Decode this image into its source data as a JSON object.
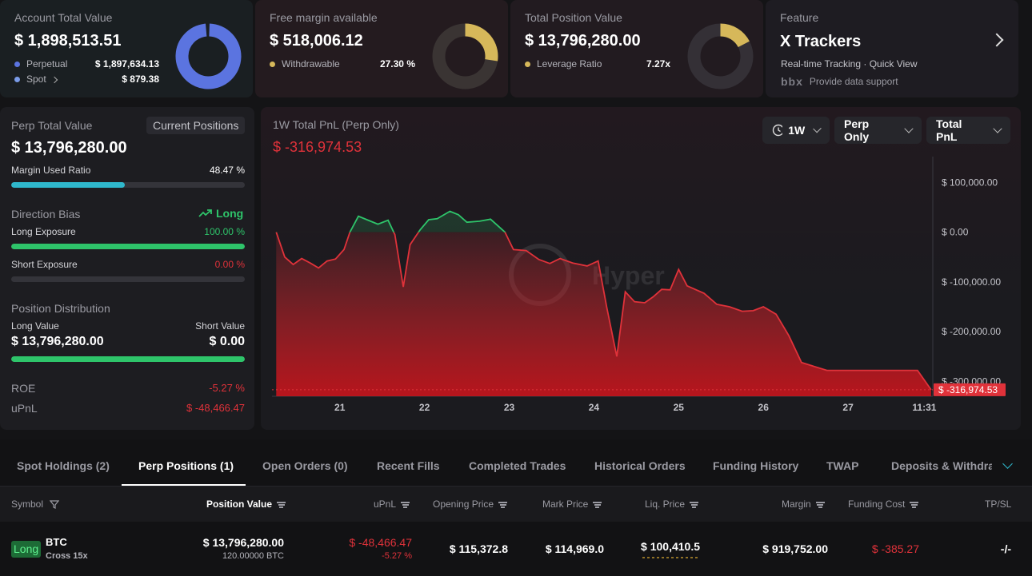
{
  "summary": {
    "account": {
      "title": "Account Total Value",
      "value": "$ 1,898,513.51",
      "rows": [
        {
          "label": "Perpetual",
          "value": "$ 1,897,634.13",
          "color": "#5b74e0"
        },
        {
          "label": "Spot",
          "value": "$ 879.38",
          "color": "#7a9be8"
        }
      ]
    },
    "margin": {
      "title": "Free margin available",
      "value": "$ 518,006.12",
      "row": {
        "label": "Withdrawable",
        "value": "27.30 %",
        "color": "#d6b85a"
      }
    },
    "position": {
      "title": "Total Position Value",
      "value": "$ 13,796,280.00",
      "row": {
        "label": "Leverage Ratio",
        "value": "7.27x",
        "color": "#d6b85a"
      }
    },
    "feature": {
      "title": "Feature",
      "name": "X Trackers",
      "desc": "Real-time Tracking · Quick View",
      "support": "Provide data support",
      "logo_text": "bbx"
    }
  },
  "perp": {
    "title": "Perp Total Value",
    "tag": "Current Positions",
    "value": "$ 13,796,280.00",
    "margin_used_label": "Margin Used Ratio",
    "margin_used_value": "48.47 %",
    "margin_used_fraction": 0.4847,
    "direction_label": "Direction Bias",
    "direction_value": "Long",
    "long_label": "Long Exposure",
    "long_value": "100.00 %",
    "long_fraction": 1.0,
    "short_label": "Short Exposure",
    "short_value": "0.00 %",
    "short_fraction": 0.0,
    "distribution_label": "Position Distribution",
    "long_value_label": "Long Value",
    "long_value_amount": "$ 13,796,280.00",
    "short_value_label": "Short Value",
    "short_value_amount": "$ 0.00",
    "roe_label": "ROE",
    "roe_value": "-5.27 %",
    "upnl_label": "uPnL",
    "upnl_value": "$ -48,466.47"
  },
  "chart_panel": {
    "title": "1W Total PnL (Perp Only)",
    "value": "$ -316,974.53",
    "controls": {
      "range": "1W",
      "scope": "Perp Only",
      "metric": "Total PnL"
    },
    "watermark": "Hyper",
    "current_label": "$ -316,974.53"
  },
  "chart_data": {
    "type": "area",
    "title": "1W Total PnL (Perp Only)",
    "x_ticks": [
      {
        "label": "21",
        "x": 1
      },
      {
        "label": "22",
        "x": 2
      },
      {
        "label": "23",
        "x": 3
      },
      {
        "label": "24",
        "x": 4
      },
      {
        "label": "25",
        "x": 5
      },
      {
        "label": "26",
        "x": 6
      },
      {
        "label": "27",
        "x": 7
      },
      {
        "label": "11:31",
        "x": 7.9
      }
    ],
    "y_ticks": [
      {
        "label": "$ 100,000.00",
        "value": 100000
      },
      {
        "label": "$ 0.00",
        "value": 0
      },
      {
        "label": "$ -100,000.00",
        "value": -100000
      },
      {
        "label": "$ -200,000.00",
        "value": -200000
      },
      {
        "label": "$ -300,000.00",
        "value": -300000
      }
    ],
    "xlim": [
      0.2,
      8.0
    ],
    "ylim": [
      -330000,
      152000
    ],
    "colors": {
      "positive": "#2ec46a",
      "negative": "#e0323a"
    },
    "points": [
      [
        0.25,
        0
      ],
      [
        0.35,
        -50000
      ],
      [
        0.45,
        -65000
      ],
      [
        0.55,
        -53000
      ],
      [
        0.65,
        -62000
      ],
      [
        0.75,
        -72000
      ],
      [
        0.85,
        -58000
      ],
      [
        0.95,
        -54000
      ],
      [
        1.05,
        -35000
      ],
      [
        1.12,
        0
      ],
      [
        1.22,
        32000
      ],
      [
        1.32,
        25000
      ],
      [
        1.45,
        16000
      ],
      [
        1.57,
        24000
      ],
      [
        1.65,
        -5000
      ],
      [
        1.75,
        -110000
      ],
      [
        1.83,
        -25000
      ],
      [
        1.95,
        5000
      ],
      [
        2.05,
        25000
      ],
      [
        2.15,
        27000
      ],
      [
        2.3,
        42000
      ],
      [
        2.4,
        35000
      ],
      [
        2.5,
        20000
      ],
      [
        2.65,
        22000
      ],
      [
        2.78,
        26000
      ],
      [
        2.95,
        0
      ],
      [
        3.05,
        -35000
      ],
      [
        3.2,
        -37000
      ],
      [
        3.35,
        -55000
      ],
      [
        3.48,
        -63000
      ],
      [
        3.6,
        -53000
      ],
      [
        3.75,
        -62000
      ],
      [
        3.92,
        -68000
      ],
      [
        4.05,
        -58000
      ],
      [
        4.15,
        -150000
      ],
      [
        4.27,
        -250000
      ],
      [
        4.37,
        -120000
      ],
      [
        4.48,
        -140000
      ],
      [
        4.6,
        -142000
      ],
      [
        4.7,
        -130000
      ],
      [
        4.8,
        -115000
      ],
      [
        4.9,
        -116000
      ],
      [
        5.0,
        -75000
      ],
      [
        5.1,
        -108000
      ],
      [
        5.3,
        -123000
      ],
      [
        5.45,
        -145000
      ],
      [
        5.6,
        -150000
      ],
      [
        5.75,
        -159000
      ],
      [
        5.88,
        -158000
      ],
      [
        6.0,
        -150000
      ],
      [
        6.15,
        -165000
      ],
      [
        6.3,
        -208000
      ],
      [
        6.45,
        -262000
      ],
      [
        6.6,
        -270000
      ],
      [
        6.75,
        -278000
      ],
      [
        7.0,
        -278000
      ],
      [
        7.3,
        -278000
      ],
      [
        7.55,
        -278000
      ],
      [
        7.82,
        -278000
      ],
      [
        7.98,
        -316974.53
      ]
    ],
    "current_value": -316974.53
  },
  "tabs": [
    {
      "label": "Spot Holdings (2)"
    },
    {
      "label": "Perp Positions (1)",
      "active": true
    },
    {
      "label": "Open Orders (0)"
    },
    {
      "label": "Recent Fills"
    },
    {
      "label": "Completed Trades"
    },
    {
      "label": "Historical Orders"
    },
    {
      "label": "Funding History"
    },
    {
      "label": "TWAP"
    },
    {
      "label": "Deposits & Withdraw"
    }
  ],
  "table": {
    "headers": {
      "symbol": "Symbol",
      "position_value": "Position Value",
      "upnl": "uPnL",
      "opening_price": "Opening Price",
      "mark_price": "Mark Price",
      "liq_price": "Liq. Price",
      "margin": "Margin",
      "funding_cost": "Funding Cost",
      "tpsl": "TP/SL"
    },
    "row": {
      "side": "Long",
      "symbol": "BTC",
      "mode": "Cross 15x",
      "position_value": "$ 13,796,280.00",
      "position_size": "120.00000 BTC",
      "upnl": "$ -48,466.47",
      "upnl_pct": "-5.27 %",
      "opening_price": "$ 115,372.8",
      "mark_price": "$ 114,969.0",
      "liq_price": "$ 100,410.5",
      "margin": "$ 919,752.00",
      "funding_cost": "$ -385.27",
      "tpsl": "-/-"
    }
  }
}
